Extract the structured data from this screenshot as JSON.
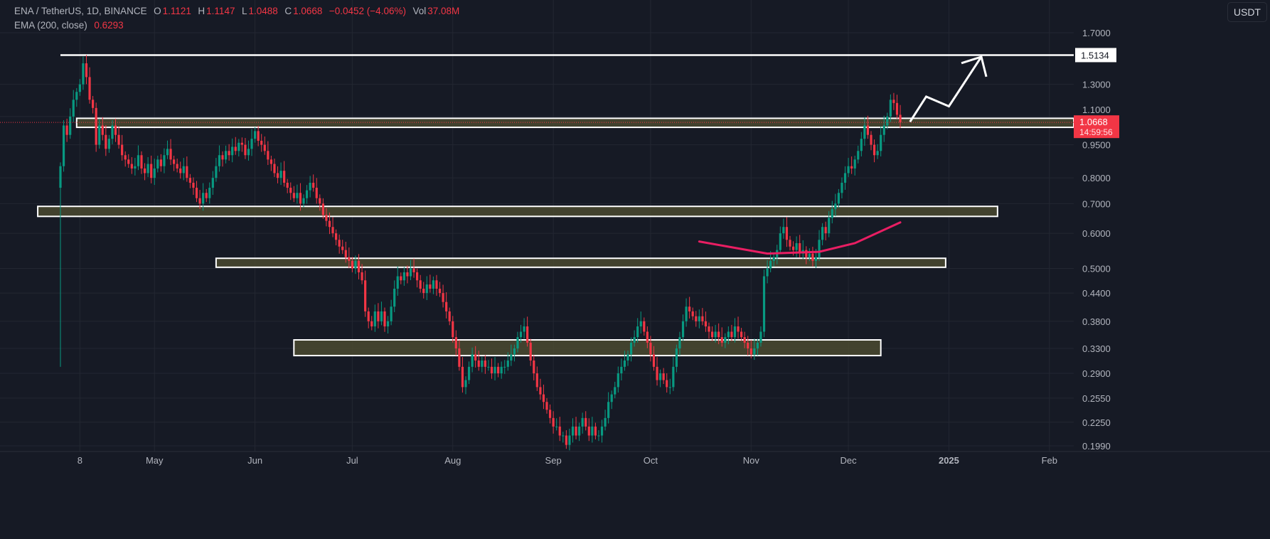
{
  "header": {
    "symbol": "ENA / TetherUS, 1D, BINANCE",
    "o_label": "O",
    "o": "1.1121",
    "h_label": "H",
    "h": "1.1147",
    "l_label": "L",
    "l": "1.0488",
    "c_label": "C",
    "c": "1.0668",
    "change": "−0.0452 (−4.06%)",
    "vol_label": "Vol",
    "vol": "37.08M",
    "ema_label": "EMA (200, close)",
    "ema_value": "0.6293"
  },
  "currency": "USDT",
  "colors": {
    "bg": "#161a25",
    "up": "#089981",
    "down": "#f23645",
    "ema": "#e91e63",
    "zone": "#4a4a30",
    "grid": "#232732"
  },
  "chart_data": {
    "type": "candlestick",
    "scale": "log",
    "start_date": "Apr 2",
    "first_open": 0.76,
    "first_low": 0.3,
    "closes": [
      0.85,
      1.05,
      1.0,
      1.1,
      1.2,
      1.25,
      1.3,
      1.45,
      1.35,
      1.2,
      1.15,
      0.95,
      1.05,
      1.0,
      0.93,
      0.98,
      1.05,
      1.0,
      0.95,
      0.9,
      0.88,
      0.86,
      0.84,
      0.85,
      0.9,
      0.84,
      0.82,
      0.86,
      0.8,
      0.84,
      0.88,
      0.85,
      0.9,
      0.93,
      0.88,
      0.86,
      0.84,
      0.82,
      0.85,
      0.8,
      0.78,
      0.76,
      0.72,
      0.7,
      0.74,
      0.72,
      0.76,
      0.8,
      0.85,
      0.9,
      0.88,
      0.92,
      0.9,
      0.94,
      0.92,
      0.96,
      0.95,
      0.9,
      0.93,
      0.98,
      1.02,
      0.97,
      0.95,
      0.92,
      0.88,
      0.86,
      0.82,
      0.8,
      0.83,
      0.78,
      0.76,
      0.74,
      0.72,
      0.74,
      0.7,
      0.72,
      0.75,
      0.78,
      0.76,
      0.72,
      0.7,
      0.66,
      0.64,
      0.62,
      0.6,
      0.58,
      0.56,
      0.55,
      0.53,
      0.52,
      0.5,
      0.52,
      0.49,
      0.47,
      0.4,
      0.38,
      0.37,
      0.4,
      0.38,
      0.4,
      0.37,
      0.38,
      0.41,
      0.45,
      0.48,
      0.47,
      0.49,
      0.48,
      0.5,
      0.49,
      0.47,
      0.45,
      0.44,
      0.46,
      0.45,
      0.47,
      0.45,
      0.44,
      0.42,
      0.4,
      0.38,
      0.35,
      0.33,
      0.3,
      0.27,
      0.28,
      0.3,
      0.32,
      0.31,
      0.3,
      0.31,
      0.3,
      0.3,
      0.29,
      0.3,
      0.29,
      0.3,
      0.3,
      0.31,
      0.32,
      0.33,
      0.35,
      0.36,
      0.37,
      0.34,
      0.31,
      0.29,
      0.27,
      0.26,
      0.25,
      0.24,
      0.23,
      0.22,
      0.22,
      0.21,
      0.21,
      0.2,
      0.21,
      0.22,
      0.21,
      0.22,
      0.23,
      0.22,
      0.21,
      0.22,
      0.21,
      0.21,
      0.22,
      0.23,
      0.25,
      0.26,
      0.27,
      0.29,
      0.3,
      0.31,
      0.32,
      0.34,
      0.35,
      0.37,
      0.38,
      0.36,
      0.34,
      0.32,
      0.3,
      0.28,
      0.29,
      0.28,
      0.27,
      0.27,
      0.3,
      0.33,
      0.35,
      0.38,
      0.41,
      0.4,
      0.39,
      0.38,
      0.39,
      0.38,
      0.37,
      0.36,
      0.35,
      0.36,
      0.35,
      0.34,
      0.35,
      0.36,
      0.35,
      0.37,
      0.36,
      0.35,
      0.34,
      0.33,
      0.32,
      0.33,
      0.34,
      0.36,
      0.48,
      0.5,
      0.52,
      0.53,
      0.55,
      0.6,
      0.62,
      0.58,
      0.56,
      0.55,
      0.57,
      0.54,
      0.55,
      0.53,
      0.54,
      0.52,
      0.53,
      0.58,
      0.62,
      0.6,
      0.65,
      0.68,
      0.7,
      0.74,
      0.78,
      0.82,
      0.85,
      0.84,
      0.88,
      0.92,
      0.98,
      1.05,
      1.0,
      0.95,
      0.9,
      0.92,
      1.0,
      1.05,
      1.1,
      1.2,
      1.18,
      1.11,
      1.0668
    ],
    "ema": [
      [
        197,
        0.575
      ],
      [
        218,
        0.54
      ],
      [
        234,
        0.545
      ],
      [
        245,
        0.57
      ],
      [
        259,
        0.635
      ]
    ],
    "zones": [
      {
        "from_day": 5,
        "to_day": 999,
        "low": 1.04,
        "high": 1.09
      },
      {
        "from_day": -7,
        "to_day": 289,
        "low": 0.655,
        "high": 0.69
      },
      {
        "from_day": 48,
        "to_day": 273,
        "low": 0.503,
        "high": 0.527
      },
      {
        "from_day": 72,
        "to_day": 253,
        "low": 0.318,
        "high": 0.345
      }
    ],
    "resistance": {
      "price": 1.5134,
      "label": "1.5134",
      "from_day": 0
    },
    "projection_arrow": [
      [
        262,
        1.07
      ],
      [
        267,
        1.22
      ],
      [
        274,
        1.16
      ],
      [
        284,
        1.5
      ]
    ],
    "y_ticks": [
      "1.7000",
      "1.3000",
      "1.1000",
      "0.9500",
      "0.8000",
      "0.7000",
      "0.6000",
      "0.5000",
      "0.4400",
      "0.3800",
      "0.3300",
      "0.2900",
      "0.2550",
      "0.2250",
      "0.1990"
    ],
    "x_ticks": [
      {
        "label": "8",
        "day": 6
      },
      {
        "label": "May",
        "day": 29
      },
      {
        "label": "Jun",
        "day": 60
      },
      {
        "label": "Jul",
        "day": 90
      },
      {
        "label": "Aug",
        "day": 121
      },
      {
        "label": "Sep",
        "day": 152
      },
      {
        "label": "Oct",
        "day": 182
      },
      {
        "label": "Nov",
        "day": 213
      },
      {
        "label": "Dec",
        "day": 243
      },
      {
        "label": "2025",
        "day": 274
      },
      {
        "label": "Feb",
        "day": 305
      }
    ],
    "last_price": "1.0668",
    "countdown": "14:59:56"
  }
}
